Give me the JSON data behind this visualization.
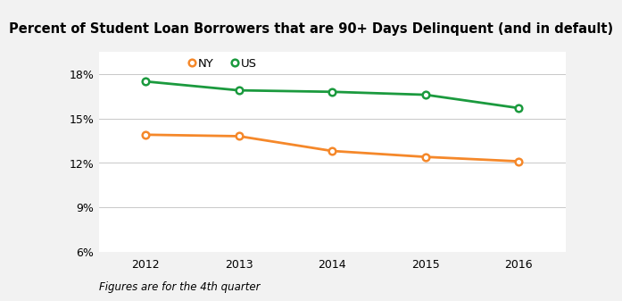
{
  "title": "Percent of Student Loan Borrowers that are 90+ Days Delinquent (and in default)",
  "years": [
    2012,
    2013,
    2014,
    2015,
    2016
  ],
  "ny_values": [
    0.139,
    0.138,
    0.128,
    0.124,
    0.121
  ],
  "us_values": [
    0.175,
    0.169,
    0.168,
    0.166,
    0.157
  ],
  "ny_color": "#F5882A",
  "us_color": "#1B9A3E",
  "ny_label": "NY",
  "us_label": "US",
  "ylim": [
    0.06,
    0.195
  ],
  "yticks": [
    0.06,
    0.09,
    0.12,
    0.15,
    0.18
  ],
  "footnote": "Figures are for the 4th quarter",
  "title_bg_color": "#D9D9D9",
  "plot_area_bg_color": "#FFFFFF",
  "fig_bg_color": "#F2F2F2",
  "title_fontsize": 10.5,
  "legend_fontsize": 9.5,
  "tick_fontsize": 9,
  "footnote_fontsize": 8.5,
  "line_width": 2.0,
  "marker_size": 5.5
}
